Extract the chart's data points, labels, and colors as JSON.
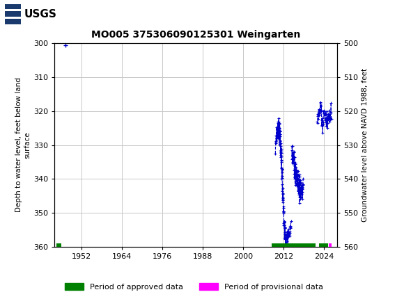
{
  "title": "MO005 375306090125301 Weingarten",
  "ylabel_left": "Depth to water level, feet below land\nsurface",
  "ylabel_right": "Groundwater level above NAVD 1988, feet",
  "ylim_left": [
    300,
    360
  ],
  "ylim_right": [
    560,
    500
  ],
  "yticks_left": [
    300,
    310,
    320,
    330,
    340,
    350,
    360
  ],
  "yticks_right": [
    560,
    550,
    540,
    530,
    520,
    510,
    500
  ],
  "xlim": [
    1944,
    2028
  ],
  "xticks": [
    1952,
    1964,
    1976,
    1988,
    2000,
    2012,
    2024
  ],
  "header_color": "#1a6b3c",
  "bg_color": "#ffffff",
  "grid_color": "#c8c8c8",
  "data_color": "#0000cc",
  "approved_color": "#008000",
  "provisional_color": "#ff00ff",
  "single_point_x": 1947.3,
  "single_point_y": 300.5,
  "approved_bar_segments": [
    {
      "x_start": 1944.5,
      "x_end": 1946.0
    },
    {
      "x_start": 2008.5,
      "x_end": 2021.5
    },
    {
      "x_start": 2022.5,
      "x_end": 2025.3
    }
  ],
  "provisional_bar_segments": [
    {
      "x_start": 2025.4,
      "x_end": 2026.3
    }
  ],
  "legend_entries": [
    {
      "label": "Period of approved data",
      "color": "#008000"
    },
    {
      "label": "Period of provisional data",
      "color": "#ff00ff"
    }
  ]
}
